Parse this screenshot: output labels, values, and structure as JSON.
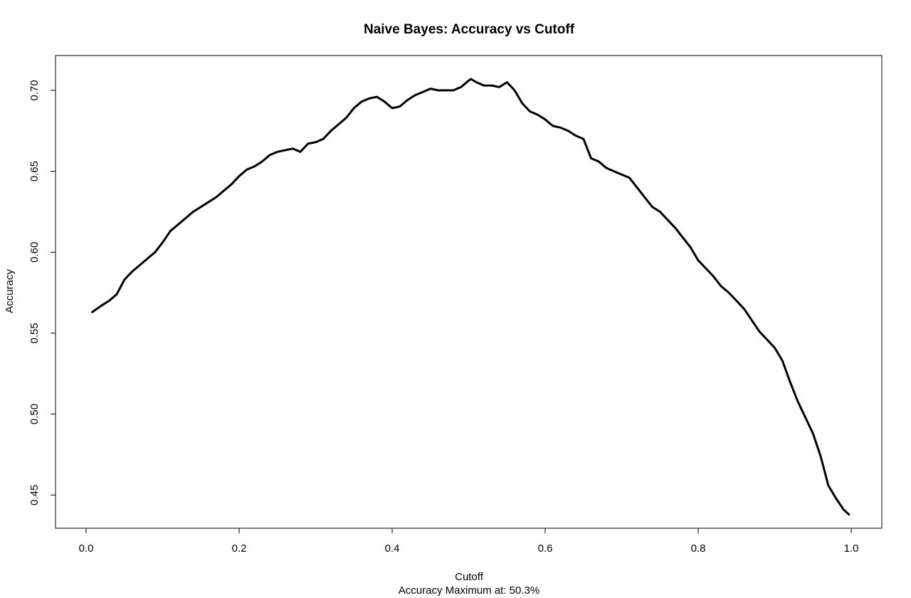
{
  "chart_data": {
    "type": "line",
    "title": "Naive Bayes: Accuracy vs Cutoff",
    "xlabel": "Cutoff",
    "subtitle": "Accuracy Maximum at: 50.3%",
    "ylabel": "Accuracy",
    "xlim": [
      -0.04,
      1.04
    ],
    "ylim": [
      0.4295,
      0.7215
    ],
    "x_ticks": [
      0.0,
      0.2,
      0.4,
      0.6,
      0.8,
      1.0
    ],
    "x_tick_labels": [
      "0.0",
      "0.2",
      "0.4",
      "0.6",
      "0.8",
      "1.0"
    ],
    "y_ticks": [
      0.45,
      0.5,
      0.55,
      0.6,
      0.65,
      0.7
    ],
    "y_tick_labels": [
      "0.45",
      "0.50",
      "0.55",
      "0.60",
      "0.65",
      "0.70"
    ],
    "grid": false,
    "line_color": "#000000",
    "series": [
      {
        "x": [
          0.008,
          0.02,
          0.03,
          0.04,
          0.05,
          0.06,
          0.07,
          0.08,
          0.09,
          0.1,
          0.11,
          0.12,
          0.13,
          0.14,
          0.15,
          0.16,
          0.17,
          0.18,
          0.19,
          0.2,
          0.21,
          0.22,
          0.23,
          0.24,
          0.25,
          0.26,
          0.27,
          0.28,
          0.29,
          0.3,
          0.31,
          0.32,
          0.33,
          0.34,
          0.35,
          0.36,
          0.37,
          0.38,
          0.39,
          0.4,
          0.41,
          0.42,
          0.43,
          0.44,
          0.45,
          0.46,
          0.47,
          0.48,
          0.49,
          0.5,
          0.503,
          0.51,
          0.52,
          0.53,
          0.54,
          0.55,
          0.56,
          0.57,
          0.58,
          0.59,
          0.6,
          0.61,
          0.62,
          0.63,
          0.64,
          0.65,
          0.66,
          0.67,
          0.68,
          0.69,
          0.7,
          0.71,
          0.72,
          0.73,
          0.74,
          0.75,
          0.76,
          0.77,
          0.78,
          0.79,
          0.8,
          0.81,
          0.82,
          0.83,
          0.84,
          0.85,
          0.86,
          0.87,
          0.88,
          0.89,
          0.9,
          0.91,
          0.92,
          0.93,
          0.94,
          0.95,
          0.96,
          0.97,
          0.98,
          0.99,
          0.997
        ],
        "values": [
          0.563,
          0.567,
          0.57,
          0.574,
          0.583,
          0.588,
          0.592,
          0.596,
          0.6,
          0.606,
          0.613,
          0.617,
          0.621,
          0.625,
          0.628,
          0.631,
          0.634,
          0.638,
          0.642,
          0.647,
          0.651,
          0.653,
          0.656,
          0.66,
          0.662,
          0.663,
          0.664,
          0.662,
          0.667,
          0.668,
          0.67,
          0.675,
          0.679,
          0.683,
          0.689,
          0.693,
          0.695,
          0.696,
          0.693,
          0.689,
          0.69,
          0.694,
          0.697,
          0.699,
          0.701,
          0.7,
          0.7,
          0.7,
          0.702,
          0.706,
          0.707,
          0.705,
          0.703,
          0.703,
          0.702,
          0.705,
          0.7,
          0.692,
          0.687,
          0.685,
          0.682,
          0.678,
          0.677,
          0.675,
          0.672,
          0.67,
          0.658,
          0.656,
          0.652,
          0.65,
          0.648,
          0.646,
          0.64,
          0.634,
          0.628,
          0.625,
          0.62,
          0.615,
          0.609,
          0.603,
          0.595,
          0.59,
          0.585,
          0.579,
          0.575,
          0.57,
          0.565,
          0.558,
          0.551,
          0.546,
          0.541,
          0.533,
          0.52,
          0.508,
          0.498,
          0.488,
          0.474,
          0.456,
          0.448,
          0.441,
          0.438
        ]
      }
    ]
  }
}
